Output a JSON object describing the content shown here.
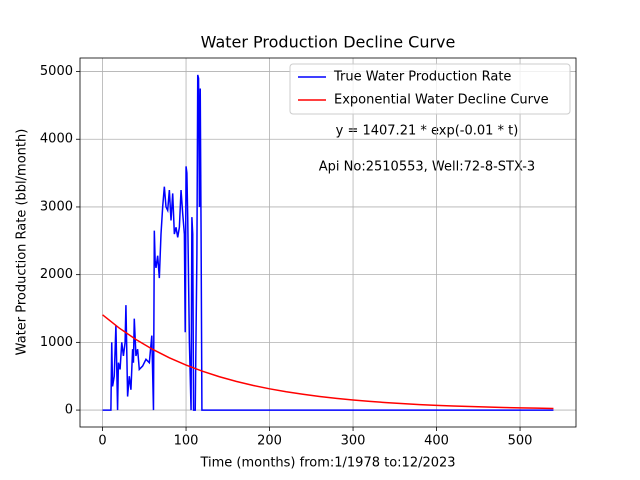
{
  "chart_data": {
    "type": "line",
    "title": "Water Production Decline Curve",
    "x_label": "Time (months) from:1/1978 to:12/2023",
    "y_label": "Water Production Rate (bbl/month)",
    "annotations": [
      "y = 1407.21 * exp(-0.01 * t)",
      "Api No:2510553, Well:72-8-STX-3"
    ],
    "xlim": [
      -27,
      567
    ],
    "ylim": [
      -250,
      5200
    ],
    "xticks": [
      0,
      100,
      200,
      300,
      400,
      500
    ],
    "yticks": [
      0,
      1000,
      2000,
      3000,
      4000,
      5000
    ],
    "grid": true,
    "legend": "upper right",
    "series": [
      {
        "name": "True Water Production Rate",
        "color": "#0000ff",
        "x": [
          0,
          10,
          11,
          12,
          14,
          16,
          18,
          19,
          21,
          23,
          25,
          27,
          28,
          30,
          32,
          34,
          36,
          37,
          38,
          40,
          42,
          44,
          48,
          52,
          56,
          59,
          61,
          62,
          63,
          64,
          66,
          68,
          70,
          72,
          74,
          76,
          78,
          80,
          82,
          84,
          86,
          88,
          90,
          92,
          94,
          96,
          98,
          99,
          100,
          101,
          102,
          104,
          106,
          107,
          108,
          109,
          111,
          113,
          114,
          115,
          116,
          117,
          118,
          119,
          200,
          540
        ],
        "values": [
          0,
          0,
          1000,
          350,
          500,
          1250,
          0,
          700,
          600,
          1000,
          800,
          1000,
          1550,
          200,
          500,
          300,
          900,
          700,
          1350,
          800,
          900,
          600,
          650,
          750,
          700,
          1100,
          0,
          2650,
          2200,
          2100,
          2280,
          1950,
          2600,
          3000,
          3300,
          3000,
          2950,
          3250,
          2800,
          3200,
          2600,
          2700,
          2550,
          2700,
          3250,
          2900,
          2600,
          1150,
          3600,
          3500,
          2850,
          1000,
          0,
          2850,
          2600,
          0,
          0,
          2300,
          4950,
          4900,
          3000,
          4750,
          2600,
          0,
          0,
          0
        ]
      },
      {
        "name": "Exponential Water Decline Curve",
        "color": "#ff0000",
        "x": [
          0,
          20,
          40,
          60,
          80,
          100,
          120,
          140,
          160,
          180,
          200,
          220,
          240,
          260,
          280,
          300,
          320,
          340,
          360,
          380,
          400,
          420,
          440,
          460,
          480,
          500,
          520,
          540
        ],
        "values": [
          1407.21,
          1211,
          1042,
          897,
          772,
          665,
          572,
          492,
          424,
          365,
          314,
          270,
          233,
          200,
          172,
          148,
          128,
          110,
          95,
          81,
          70,
          60,
          52,
          45,
          38,
          33,
          28,
          24
        ]
      }
    ]
  }
}
